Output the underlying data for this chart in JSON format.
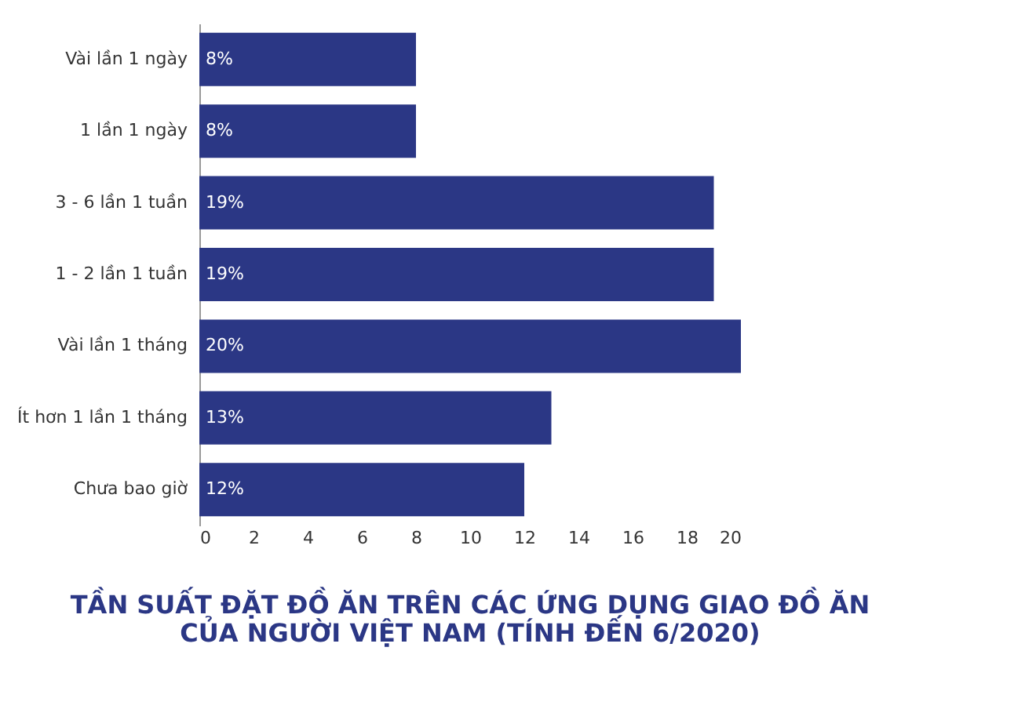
{
  "chart_data": {
    "type": "bar",
    "orientation": "horizontal",
    "title": "TẦN SUẤT ĐẶT ĐỒ ĂN TRÊN CÁC ỨNG DỤNG GIAO ĐỒ ĂN\nCỦA NGƯỜI VIỆT NAM (TÍNH ĐẾN 6/2020)",
    "categories": [
      "Vài lần 1 ngày",
      "1 lần 1 ngày",
      "3 - 6 lần 1 tuần",
      "1 - 2 lần 1 tuần",
      "Vài lần 1 tháng",
      "Ít hơn 1 lần 1 tháng",
      "Chưa bao giờ"
    ],
    "values": [
      8,
      8,
      19,
      19,
      20,
      13,
      12
    ],
    "value_labels": [
      "8%",
      "8%",
      "19%",
      "19%",
      "20%",
      "13%",
      "12%"
    ],
    "color": "#2b3785",
    "xlim": [
      0,
      20
    ],
    "xticks": [
      0,
      2,
      4,
      6,
      8,
      10,
      12,
      14,
      16,
      18,
      20
    ],
    "grid": false
  }
}
